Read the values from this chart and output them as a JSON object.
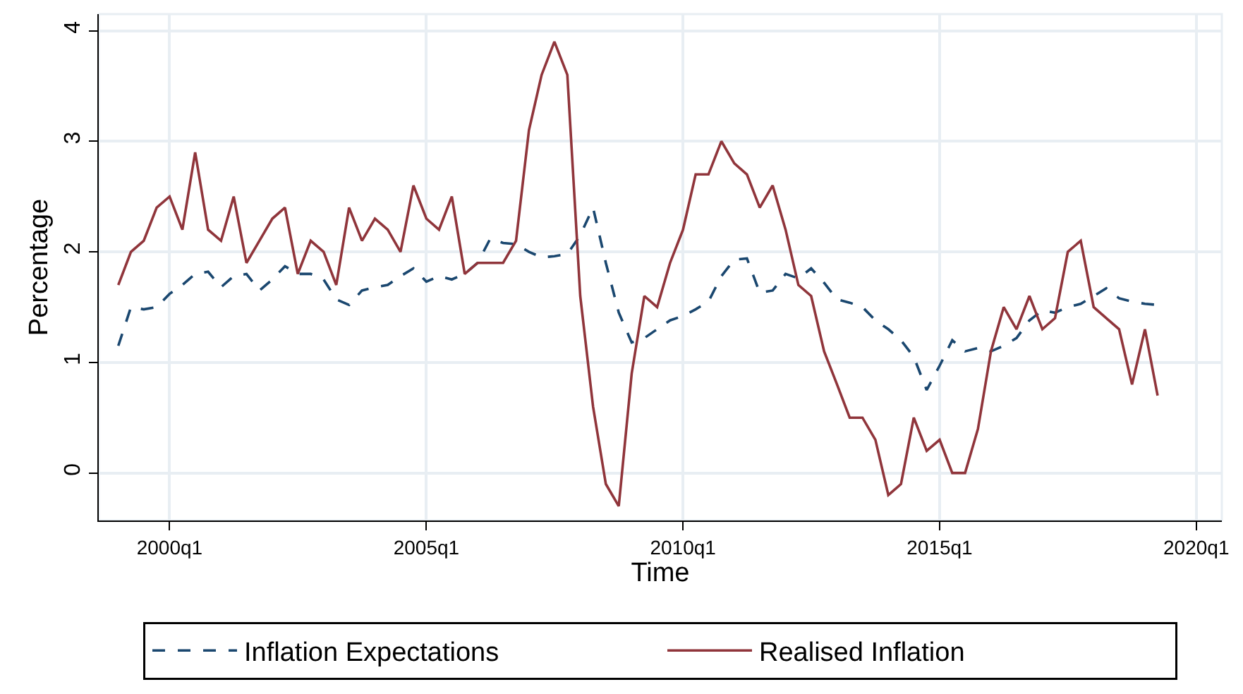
{
  "chart_data": {
    "type": "line",
    "xlabel": "Time",
    "ylabel": "Percentage",
    "x": [
      "1999-01",
      "1999-04",
      "1999-07",
      "1999-10",
      "2000-01",
      "2000-04",
      "2000-07",
      "2000-10",
      "2001-01",
      "2001-04",
      "2001-07",
      "2001-10",
      "2002-01",
      "2002-04",
      "2002-07",
      "2002-10",
      "2003-01",
      "2003-04",
      "2003-07",
      "2003-10",
      "2004-01",
      "2004-04",
      "2004-07",
      "2004-10",
      "2005-01",
      "2005-04",
      "2005-07",
      "2005-10",
      "2006-01",
      "2006-04",
      "2006-07",
      "2006-10",
      "2007-01",
      "2007-04",
      "2007-07",
      "2007-10",
      "2008-01",
      "2008-04",
      "2008-07",
      "2008-10",
      "2009-01",
      "2009-04",
      "2009-07",
      "2009-10",
      "2010-01",
      "2010-04",
      "2010-07",
      "2010-10",
      "2011-01",
      "2011-04",
      "2011-07",
      "2011-10",
      "2012-01",
      "2012-04",
      "2012-07",
      "2012-10",
      "2013-01",
      "2013-04",
      "2013-07",
      "2013-10",
      "2014-01",
      "2014-04",
      "2014-07",
      "2014-10",
      "2015-01",
      "2015-04",
      "2015-07",
      "2015-10",
      "2016-01",
      "2016-04",
      "2016-07",
      "2016-10",
      "2017-01",
      "2017-04",
      "2017-07",
      "2017-10",
      "2018-01",
      "2018-04",
      "2018-07",
      "2018-10",
      "2019-01",
      "2019-04"
    ],
    "series": [
      {
        "name": "Inflation Expectations",
        "color": "#1a476f",
        "line_style": "dashed",
        "values": [
          1.15,
          1.5,
          1.48,
          1.5,
          1.62,
          1.7,
          1.8,
          1.82,
          1.68,
          1.78,
          1.8,
          1.65,
          1.75,
          1.87,
          1.8,
          1.8,
          1.75,
          1.57,
          1.52,
          1.65,
          1.68,
          1.7,
          1.78,
          1.85,
          1.73,
          1.78,
          1.75,
          1.8,
          1.9,
          2.12,
          2.08,
          2.07,
          2.0,
          1.95,
          1.96,
          1.98,
          2.15,
          2.4,
          1.9,
          1.45,
          1.18,
          1.22,
          1.3,
          1.38,
          1.42,
          1.48,
          1.55,
          1.78,
          1.93,
          1.94,
          1.63,
          1.65,
          1.8,
          1.76,
          1.85,
          1.72,
          1.57,
          1.54,
          1.5,
          1.38,
          1.3,
          1.2,
          1.05,
          0.75,
          0.97,
          1.2,
          1.1,
          1.13,
          1.1,
          1.15,
          1.22,
          1.38,
          1.47,
          1.45,
          1.5,
          1.53,
          1.6,
          1.67,
          1.58,
          1.55,
          1.53,
          1.52
        ]
      },
      {
        "name": "Realised Inflation",
        "color": "#90353b",
        "line_style": "solid",
        "values": [
          1.7,
          2.0,
          2.1,
          2.4,
          2.5,
          2.2,
          2.9,
          2.2,
          2.1,
          2.5,
          1.9,
          2.1,
          2.3,
          2.4,
          1.8,
          2.1,
          2.0,
          1.7,
          2.4,
          2.1,
          2.3,
          2.2,
          2.0,
          2.6,
          2.3,
          2.2,
          2.5,
          1.8,
          1.9,
          1.9,
          1.9,
          2.1,
          3.1,
          3.6,
          3.9,
          3.6,
          1.6,
          0.6,
          -0.1,
          -0.3,
          0.9,
          1.6,
          1.5,
          1.9,
          2.2,
          2.7,
          2.7,
          3.0,
          2.8,
          2.7,
          2.4,
          2.6,
          2.2,
          1.7,
          1.6,
          1.1,
          0.8,
          0.5,
          0.5,
          0.3,
          -0.2,
          -0.1,
          0.5,
          0.2,
          0.3,
          0.0,
          0.0,
          0.4,
          1.1,
          1.5,
          1.3,
          1.6,
          1.3,
          1.4,
          2.0,
          2.1,
          1.5,
          1.4,
          1.3,
          0.8,
          1.3,
          0.7
        ]
      }
    ],
    "xlim": [
      "1998-08-15",
      "2020-07-01"
    ],
    "xticks": [
      {
        "value": "2000-01",
        "label": "2000q1"
      },
      {
        "value": "2005-01",
        "label": "2005q1"
      },
      {
        "value": "2010-01",
        "label": "2010q1"
      },
      {
        "value": "2015-01",
        "label": "2015q1"
      },
      {
        "value": "2020-01",
        "label": "2020q1"
      }
    ],
    "ylim": [
      -0.43,
      4.15
    ],
    "yticks": [
      0,
      1,
      2,
      3,
      4
    ],
    "grid": true,
    "legend": "bottom",
    "marker": "none"
  }
}
